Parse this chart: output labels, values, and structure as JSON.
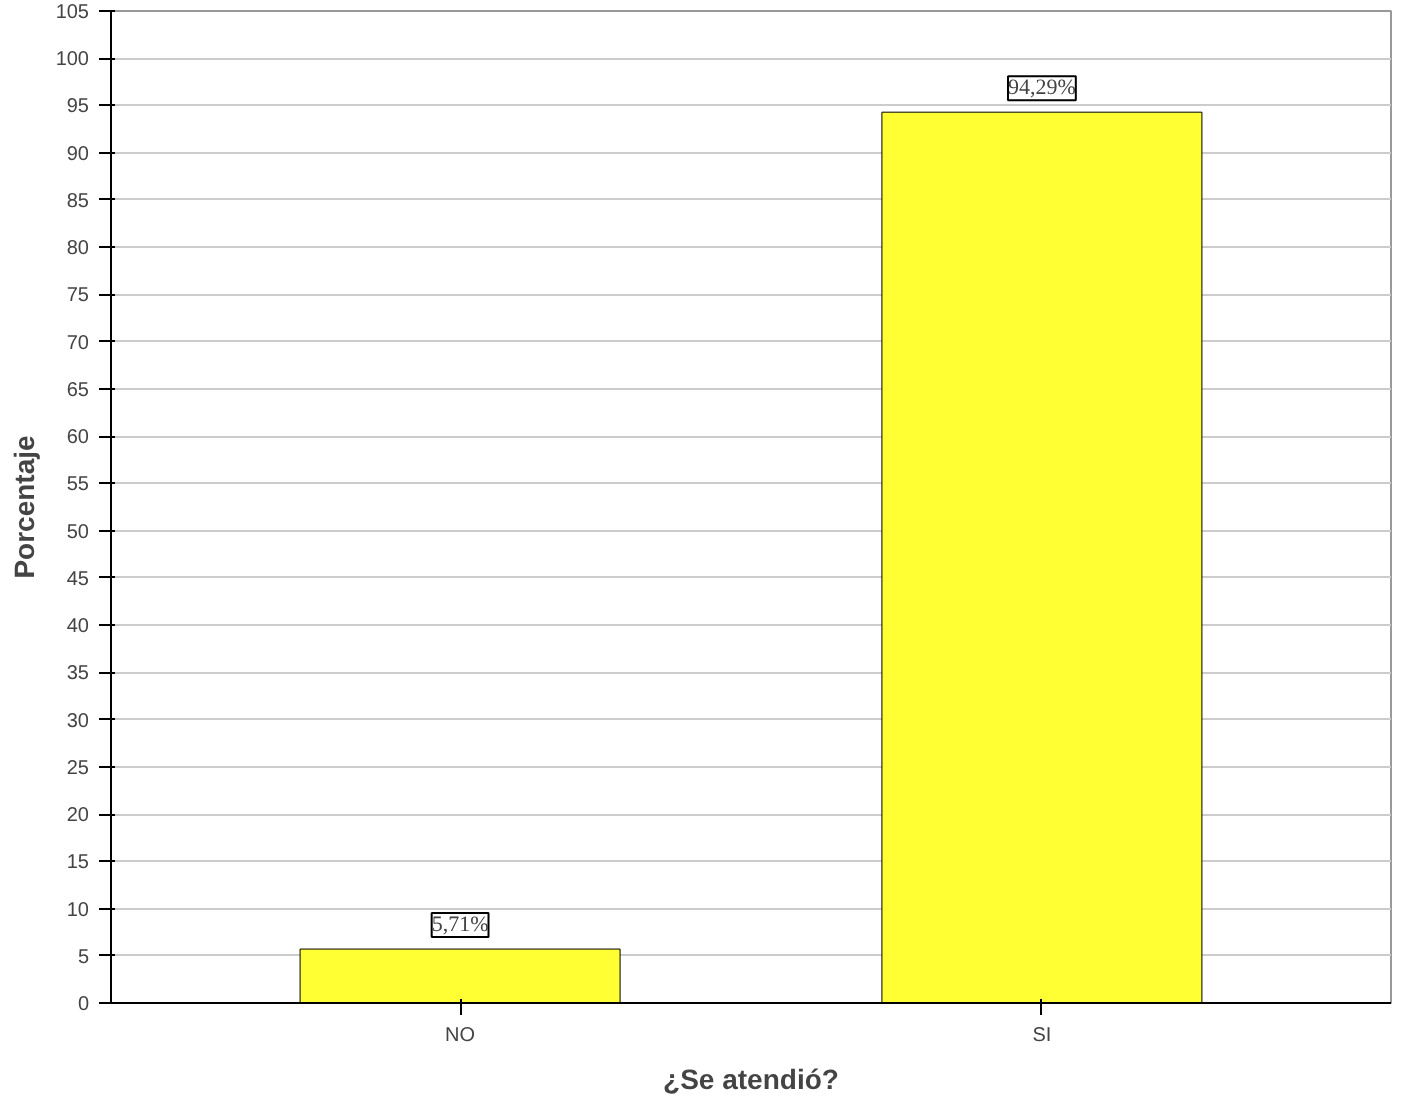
{
  "chart_data": {
    "type": "bar",
    "xlabel": "¿Se atendió?",
    "ylabel": "Porcentaje",
    "categories": [
      "NO",
      "SI"
    ],
    "values": [
      5.71,
      94.29
    ],
    "color": "#ffff33",
    "value_labels": [
      "5,71%",
      "94,29%"
    ],
    "ylim": [
      0,
      105
    ],
    "yticks": [
      0,
      5,
      10,
      15,
      20,
      25,
      30,
      35,
      40,
      45,
      50,
      55,
      60,
      65,
      70,
      75,
      80,
      85,
      90,
      95,
      100,
      105
    ],
    "grid": "y"
  }
}
